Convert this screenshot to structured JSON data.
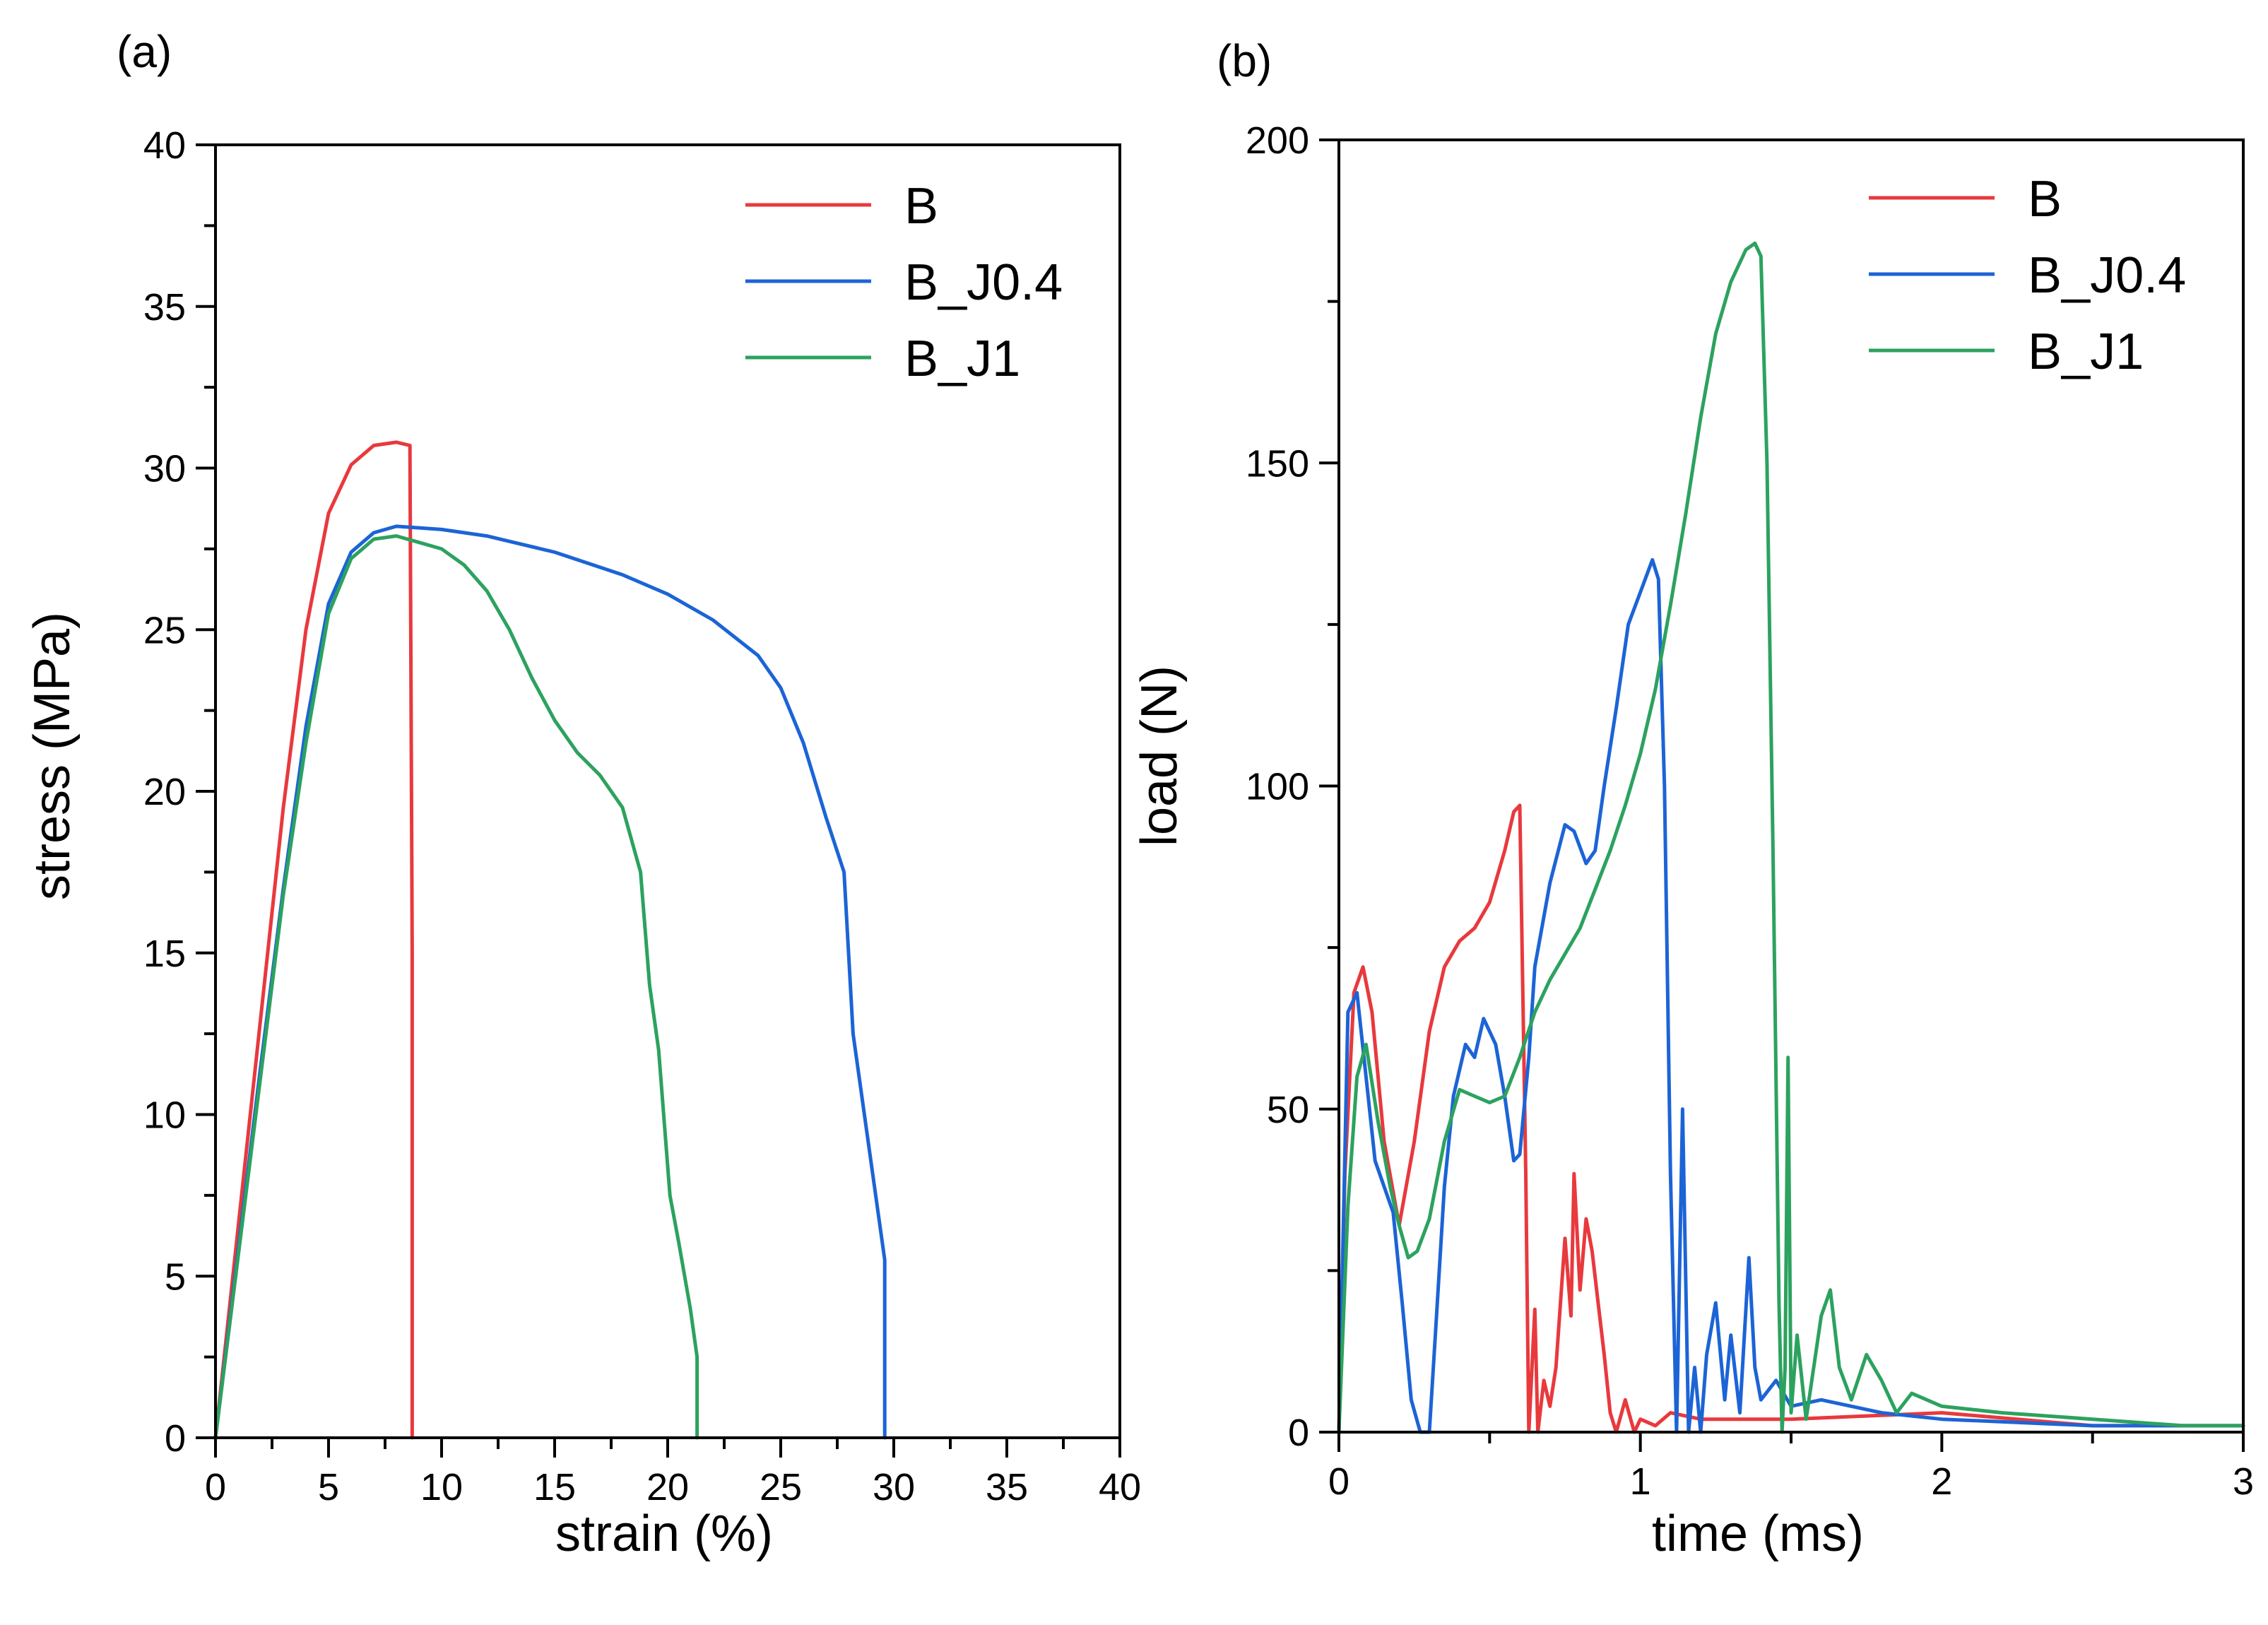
{
  "figure": {
    "panel_labels": [
      "(a)",
      "(b)"
    ]
  },
  "colors": {
    "B": "#e8393d",
    "B_J0.4": "#1c64d6",
    "B_J1": "#2ca25f",
    "axis": "#000000"
  },
  "chart_data": [
    {
      "panel": "(a)",
      "type": "line",
      "xlabel": "strain (%)",
      "ylabel": "stress (MPa)",
      "xlim": [
        0,
        40
      ],
      "ylim": [
        0,
        40
      ],
      "xticks": [
        0,
        5,
        10,
        15,
        20,
        25,
        30,
        35,
        40
      ],
      "yticks": [
        0,
        5,
        10,
        15,
        20,
        25,
        30,
        35,
        40
      ],
      "grid": false,
      "legend_position": "top-right",
      "series": [
        {
          "name": "B",
          "color": "#e8393d",
          "x": [
            0,
            1,
            2,
            3,
            4,
            5,
            6,
            7,
            8,
            8.6,
            8.7,
            8.7
          ],
          "y": [
            0,
            6.5,
            13,
            19.5,
            25,
            28.6,
            30.1,
            30.7,
            30.8,
            30.7,
            15,
            0
          ]
        },
        {
          "name": "B_J0.4",
          "color": "#1c64d6",
          "x": [
            0,
            1,
            2,
            3,
            4,
            5,
            6,
            7,
            8,
            10,
            12,
            15,
            18,
            20,
            22,
            24,
            25,
            26,
            27,
            27.8,
            28.2,
            28.8,
            29.3,
            29.6,
            29.6
          ],
          "y": [
            0,
            5.8,
            11.5,
            17,
            22,
            25.8,
            27.4,
            28.0,
            28.2,
            28.1,
            27.9,
            27.4,
            26.7,
            26.1,
            25.3,
            24.2,
            23.2,
            21.5,
            19.2,
            17.5,
            12.5,
            9.5,
            7.0,
            5.5,
            0
          ]
        },
        {
          "name": "B_J1",
          "color": "#2ca25f",
          "x": [
            0,
            1,
            2,
            3,
            4,
            5,
            6,
            7,
            8,
            9,
            10,
            11,
            12,
            13,
            14,
            15,
            16,
            17,
            18,
            18.8,
            19.2,
            19.6,
            20.1,
            20.5,
            21.0,
            21.3,
            21.3
          ],
          "y": [
            0,
            5.6,
            11.2,
            16.8,
            21.5,
            25.5,
            27.2,
            27.8,
            27.9,
            27.7,
            27.5,
            27.0,
            26.2,
            25.0,
            23.5,
            22.2,
            21.2,
            20.5,
            19.5,
            17.5,
            14.0,
            12.0,
            7.5,
            6.0,
            4.0,
            2.5,
            0
          ]
        }
      ]
    },
    {
      "panel": "(b)",
      "type": "line",
      "xlabel": "time (ms)",
      "ylabel": "load (N)",
      "xlim": [
        0,
        3
      ],
      "ylim": [
        0,
        200
      ],
      "xticks": [
        0,
        1,
        2,
        3
      ],
      "yticks": [
        0,
        50,
        100,
        150,
        200
      ],
      "grid": false,
      "legend_position": "top-right",
      "series": [
        {
          "name": "B",
          "color": "#e8393d",
          "x": [
            0,
            0.02,
            0.05,
            0.08,
            0.11,
            0.15,
            0.2,
            0.25,
            0.3,
            0.35,
            0.4,
            0.45,
            0.5,
            0.55,
            0.58,
            0.6,
            0.62,
            0.63,
            0.65,
            0.66,
            0.68,
            0.7,
            0.72,
            0.75,
            0.77,
            0.78,
            0.8,
            0.82,
            0.84,
            0.86,
            0.88,
            0.9,
            0.92,
            0.95,
            0.98,
            1.0,
            1.05,
            1.1,
            1.2,
            1.5,
            2.0,
            2.5,
            3.0
          ],
          "y": [
            0,
            40,
            68,
            72,
            65,
            45,
            32,
            45,
            62,
            72,
            76,
            78,
            82,
            90,
            96,
            97,
            40,
            0,
            19,
            0,
            8,
            4,
            10,
            30,
            18,
            40,
            22,
            33,
            28,
            20,
            12,
            3,
            0,
            5,
            0,
            2,
            1,
            3,
            2,
            2,
            3,
            1,
            1
          ]
        },
        {
          "name": "B_J0.4",
          "color": "#1c64d6",
          "x": [
            0,
            0.03,
            0.06,
            0.09,
            0.12,
            0.15,
            0.18,
            0.21,
            0.24,
            0.27,
            0.3,
            0.32,
            0.35,
            0.38,
            0.42,
            0.45,
            0.48,
            0.52,
            0.55,
            0.58,
            0.6,
            0.63,
            0.65,
            0.7,
            0.75,
            0.78,
            0.82,
            0.85,
            0.88,
            0.92,
            0.96,
            1.0,
            1.04,
            1.06,
            1.08,
            1.1,
            1.12,
            1.14,
            1.16,
            1.18,
            1.2,
            1.22,
            1.25,
            1.28,
            1.3,
            1.33,
            1.36,
            1.38,
            1.4,
            1.45,
            1.5,
            1.6,
            1.8,
            2.0,
            2.5,
            3.0
          ],
          "y": [
            0,
            65,
            68,
            55,
            42,
            38,
            34,
            20,
            5,
            0,
            0,
            15,
            38,
            52,
            60,
            58,
            64,
            60,
            52,
            42,
            43,
            58,
            72,
            85,
            94,
            93,
            88,
            90,
            100,
            112,
            125,
            130,
            135,
            132,
            100,
            40,
            0,
            50,
            0,
            10,
            0,
            12,
            20,
            5,
            15,
            3,
            27,
            10,
            5,
            8,
            4,
            5,
            3,
            2,
            1,
            1
          ]
        },
        {
          "name": "B_J1",
          "color": "#2ca25f",
          "x": [
            0,
            0.03,
            0.06,
            0.09,
            0.13,
            0.17,
            0.2,
            0.23,
            0.26,
            0.3,
            0.35,
            0.4,
            0.45,
            0.5,
            0.55,
            0.6,
            0.65,
            0.7,
            0.75,
            0.8,
            0.85,
            0.9,
            0.95,
            1.0,
            1.05,
            1.1,
            1.15,
            1.2,
            1.25,
            1.3,
            1.35,
            1.38,
            1.4,
            1.42,
            1.44,
            1.46,
            1.47,
            1.48,
            1.49,
            1.5,
            1.52,
            1.55,
            1.6,
            1.63,
            1.66,
            1.7,
            1.75,
            1.8,
            1.85,
            1.9,
            2.0,
            2.2,
            2.5,
            2.8,
            3.0
          ],
          "y": [
            0,
            35,
            55,
            60,
            48,
            38,
            32,
            27,
            28,
            33,
            45,
            53,
            52,
            51,
            52,
            58,
            65,
            70,
            74,
            78,
            84,
            90,
            97,
            105,
            115,
            128,
            142,
            157,
            170,
            178,
            183,
            184,
            182,
            150,
            90,
            20,
            0,
            10,
            58,
            3,
            15,
            2,
            18,
            22,
            10,
            5,
            12,
            8,
            3,
            6,
            4,
            3,
            2,
            1,
            1
          ]
        }
      ]
    }
  ]
}
